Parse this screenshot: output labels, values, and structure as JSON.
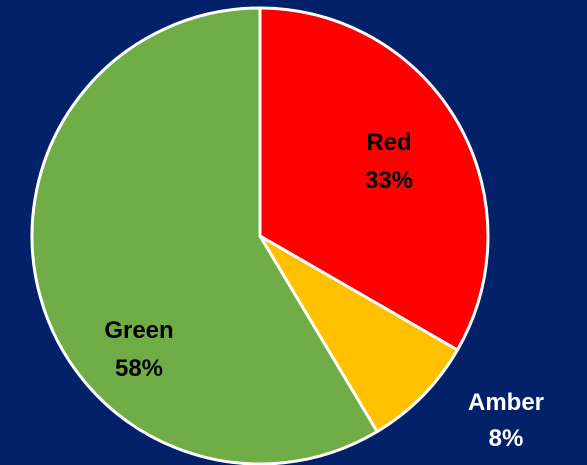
{
  "chart_data": {
    "type": "pie",
    "title": "",
    "legend": "none",
    "background": "#022169",
    "slices": [
      {
        "name": "Red",
        "label": "Red",
        "percent_text": "33%",
        "value": 33,
        "color": "#FF0000"
      },
      {
        "name": "Amber",
        "label": "Amber",
        "percent_text": "8%",
        "value": 8,
        "color": "#FFC000"
      },
      {
        "name": "Green",
        "label": "Green",
        "percent_text": "58%",
        "value": 58,
        "color": "#70AD47"
      }
    ]
  }
}
